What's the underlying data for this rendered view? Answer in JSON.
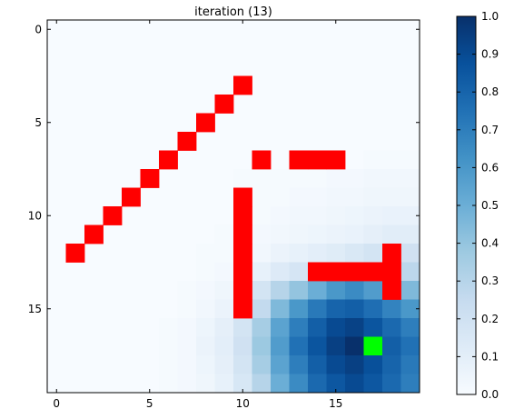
{
  "chart_data": {
    "type": "heatmap",
    "title": "iteration (13)",
    "xlabel": "",
    "ylabel": "",
    "grid_shape": [
      20,
      20
    ],
    "xlim": [
      -0.5,
      19.5
    ],
    "ylim": [
      19.5,
      -0.5
    ],
    "x_ticks": [
      0,
      5,
      10,
      15
    ],
    "y_ticks": [
      0,
      5,
      10,
      15
    ],
    "colormap": "Blues",
    "colormap_stops": [
      "#f7fbff",
      "#deebf7",
      "#c6dbef",
      "#9ecae1",
      "#6baed6",
      "#4292c6",
      "#2171b5",
      "#08519c",
      "#08306b"
    ],
    "grid": false,
    "colorbar": {
      "min": 0.0,
      "max": 1.0,
      "ticks": [
        "0.0",
        "0.1",
        "0.2",
        "0.3",
        "0.4",
        "0.5",
        "0.6",
        "0.7",
        "0.8",
        "0.9",
        "1.0"
      ]
    },
    "values": [
      [
        0,
        0,
        0,
        0,
        0,
        0,
        0,
        0,
        0,
        0,
        0,
        0,
        0,
        0,
        0,
        0,
        0,
        0,
        0,
        0
      ],
      [
        0,
        0,
        0,
        0,
        0,
        0,
        0,
        0,
        0,
        0,
        0,
        0,
        0,
        0,
        0,
        0,
        0,
        0,
        0,
        0
      ],
      [
        0,
        0,
        0,
        0,
        0,
        0,
        0,
        0,
        0,
        0,
        0,
        0,
        0,
        0,
        0,
        0,
        0,
        0,
        0,
        0
      ],
      [
        0,
        0,
        0,
        0,
        0,
        0,
        0,
        0,
        0,
        0,
        0,
        0,
        0,
        0,
        0,
        0,
        0,
        0,
        0,
        0
      ],
      [
        0,
        0,
        0,
        0,
        0,
        0,
        0,
        0,
        0,
        0,
        0,
        0,
        0,
        0,
        0,
        0,
        0,
        0,
        0,
        0
      ],
      [
        0,
        0,
        0,
        0,
        0,
        0,
        0,
        0,
        0,
        0,
        0,
        0,
        0,
        0,
        0,
        0,
        0,
        0,
        0,
        0
      ],
      [
        0,
        0,
        0,
        0,
        0,
        0,
        0,
        0,
        0,
        0,
        0,
        0,
        0,
        0,
        0,
        0,
        0,
        0,
        0,
        0
      ],
      [
        0,
        0,
        0,
        0,
        0,
        0,
        0,
        0,
        0,
        0,
        0,
        0,
        0,
        0,
        0,
        0,
        0,
        0.01,
        0.01,
        0.01
      ],
      [
        0,
        0,
        0,
        0,
        0,
        0,
        0,
        0,
        0,
        0,
        0.01,
        0.01,
        0.01,
        0.01,
        0.01,
        0.02,
        0.02,
        0.03,
        0.03,
        0.03
      ],
      [
        0,
        0,
        0,
        0,
        0,
        0,
        0,
        0,
        0,
        0,
        0.01,
        0.01,
        0.01,
        0.02,
        0.02,
        0.03,
        0.03,
        0.04,
        0.04,
        0.04
      ],
      [
        0,
        0,
        0,
        0,
        0,
        0,
        0,
        0,
        0,
        0,
        0.01,
        0.01,
        0.02,
        0.03,
        0.03,
        0.04,
        0.05,
        0.06,
        0.07,
        0.07
      ],
      [
        0,
        0,
        0,
        0,
        0,
        0,
        0,
        0,
        0,
        0.01,
        0.01,
        0.02,
        0.03,
        0.04,
        0.05,
        0.06,
        0.07,
        0.09,
        0.11,
        0.11
      ],
      [
        0,
        0,
        0,
        0,
        0,
        0,
        0,
        0,
        0.01,
        0.01,
        0.02,
        0.03,
        0.06,
        0.08,
        0.1,
        0.12,
        0.15,
        0.18,
        0.2,
        0.2
      ],
      [
        0,
        0,
        0,
        0,
        0,
        0,
        0,
        0,
        0.01,
        0.02,
        0.04,
        0.08,
        0.13,
        0.17,
        0.2,
        0.24,
        0.28,
        0.32,
        0.3,
        0.28
      ],
      [
        0,
        0,
        0,
        0,
        0,
        0,
        0,
        0.01,
        0.02,
        0.04,
        0.09,
        0.18,
        0.3,
        0.4,
        0.5,
        0.6,
        0.65,
        0.58,
        0.5,
        0.45
      ],
      [
        0,
        0,
        0,
        0,
        0,
        0,
        0,
        0.01,
        0.03,
        0.06,
        0.14,
        0.26,
        0.45,
        0.6,
        0.72,
        0.8,
        0.82,
        0.76,
        0.68,
        0.6
      ],
      [
        0,
        0,
        0,
        0,
        0,
        0,
        0.01,
        0.02,
        0.05,
        0.09,
        0.18,
        0.35,
        0.55,
        0.7,
        0.82,
        0.9,
        0.93,
        0.86,
        0.78,
        0.7
      ],
      [
        0,
        0,
        0,
        0,
        0,
        0,
        0.01,
        0.02,
        0.06,
        0.1,
        0.2,
        0.38,
        0.58,
        0.75,
        0.86,
        0.94,
        1.0,
        0.9,
        0.82,
        0.75
      ],
      [
        0,
        0,
        0,
        0,
        0,
        0,
        0.01,
        0.02,
        0.05,
        0.09,
        0.18,
        0.35,
        0.55,
        0.7,
        0.82,
        0.9,
        0.94,
        0.88,
        0.8,
        0.72
      ],
      [
        0,
        0,
        0,
        0,
        0,
        0,
        0.01,
        0.02,
        0.04,
        0.08,
        0.16,
        0.3,
        0.5,
        0.65,
        0.78,
        0.85,
        0.9,
        0.85,
        0.78,
        0.7
      ]
    ],
    "wall_color": "#ff0000",
    "walls": [
      [
        12,
        1
      ],
      [
        11,
        2
      ],
      [
        10,
        3
      ],
      [
        9,
        4
      ],
      [
        8,
        5
      ],
      [
        7,
        6
      ],
      [
        6,
        7
      ],
      [
        5,
        8
      ],
      [
        4,
        9
      ],
      [
        3,
        10
      ],
      [
        7,
        11
      ],
      [
        7,
        13
      ],
      [
        7,
        14
      ],
      [
        7,
        15
      ],
      [
        9,
        10
      ],
      [
        10,
        10
      ],
      [
        11,
        10
      ],
      [
        12,
        10
      ],
      [
        13,
        10
      ],
      [
        14,
        10
      ],
      [
        15,
        10
      ],
      [
        13,
        14
      ],
      [
        13,
        15
      ],
      [
        13,
        16
      ],
      [
        13,
        17
      ],
      [
        13,
        18
      ],
      [
        12,
        18
      ],
      [
        14,
        18
      ]
    ],
    "agent_color": "#00ff00",
    "agent": [
      17,
      17
    ]
  }
}
